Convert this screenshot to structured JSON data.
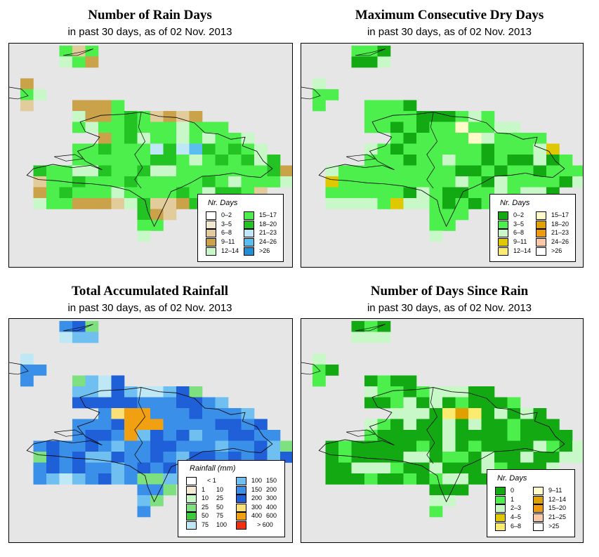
{
  "panels": [
    {
      "id": "rain-days",
      "title": "Number of Rain Days",
      "subtitle": "in past 30 days, as of  02 Nov. 2013",
      "legend": {
        "title": "Nr. Days",
        "items": [
          {
            "label": "0–2",
            "color": "#ffffff"
          },
          {
            "label": "3–5",
            "color": "#f2e8cf"
          },
          {
            "label": "6–8",
            "color": "#e3cc9b"
          },
          {
            "label": "9–11",
            "color": "#c9a24a"
          },
          {
            "label": "12–14",
            "color": "#c8f7c8"
          },
          {
            "label": "15–17",
            "color": "#4cef4c"
          },
          {
            "label": "18–20",
            "color": "#22c322"
          },
          {
            "label": "21–23",
            "color": "#bfe8f7"
          },
          {
            "label": "24–26",
            "color": "#5bbef0"
          },
          {
            "label": ">26",
            "color": "#1f8fd6"
          }
        ]
      }
    },
    {
      "id": "dry-days",
      "title": "Maximum Consecutive Dry Days",
      "subtitle": "in past 30 days, as of  02 Nov. 2013",
      "legend": {
        "title": "Nr. Days",
        "items": [
          {
            "label": "0–2",
            "color": "#13a913"
          },
          {
            "label": "3–5",
            "color": "#4cef4c"
          },
          {
            "label": "6–8",
            "color": "#c8f7c8"
          },
          {
            "label": "9–11",
            "color": "#e0c800"
          },
          {
            "label": "12–14",
            "color": "#fbeb6f"
          },
          {
            "label": "15–17",
            "color": "#fffac8"
          },
          {
            "label": "18–20",
            "color": "#e0a000"
          },
          {
            "label": "21–23",
            "color": "#f09a10"
          },
          {
            "label": "24–26",
            "color": "#f8c8a8"
          },
          {
            "label": ">26",
            "color": "#ffffff"
          }
        ]
      }
    },
    {
      "id": "rainfall",
      "title": "Total Accumulated Rainfall",
      "subtitle": "in past 30 days, as of  02 Nov. 2013",
      "legend": {
        "title": "Rainfall (mm)",
        "items": [
          {
            "lo": "",
            "hi": "< 1",
            "color": "#ffffff"
          },
          {
            "lo": "1",
            "hi": "10",
            "color": "#f4ead2"
          },
          {
            "lo": "10",
            "hi": "25",
            "color": "#c8f7c8"
          },
          {
            "lo": "25",
            "hi": "50",
            "color": "#7fe07f"
          },
          {
            "lo": "50",
            "hi": "75",
            "color": "#3ec83e"
          },
          {
            "lo": "75",
            "hi": "100",
            "color": "#bfe8f7"
          },
          {
            "lo": "100",
            "hi": "150",
            "color": "#6fc0f0"
          },
          {
            "lo": "150",
            "hi": "200",
            "color": "#3a8fe8"
          },
          {
            "lo": "200",
            "hi": "300",
            "color": "#1f5fd8"
          },
          {
            "lo": "300",
            "hi": "400",
            "color": "#fbe07a"
          },
          {
            "lo": "400",
            "hi": "600",
            "color": "#f0a010"
          },
          {
            "lo": "",
            "hi": "> 600",
            "color": "#f03010"
          }
        ]
      }
    },
    {
      "id": "days-since",
      "title": "Number of Days Since Rain",
      "subtitle": "in past 30 days, as of  02 Nov. 2013",
      "legend": {
        "title": "Nr. Days",
        "items": [
          {
            "label": "0",
            "color": "#13a913"
          },
          {
            "label": "1",
            "color": "#4cef4c"
          },
          {
            "label": "2–3",
            "color": "#c8f7c8"
          },
          {
            "label": "4–5",
            "color": "#e0c800"
          },
          {
            "label": "6–8",
            "color": "#fbeb6f"
          },
          {
            "label": "9–11",
            "color": "#fffac8"
          },
          {
            "label": "12–14",
            "color": "#e0a000"
          },
          {
            "label": "15–20",
            "color": "#f09a10"
          },
          {
            "label": "21–25",
            "color": "#f8c8a8"
          },
          {
            "label": ">25",
            "color": "#ffffff"
          }
        ]
      }
    }
  ]
}
